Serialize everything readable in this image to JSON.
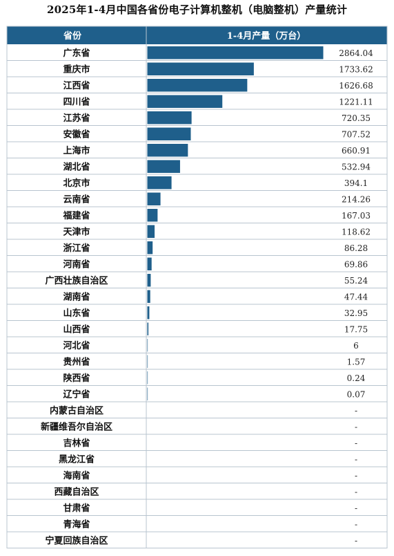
{
  "chart_data": {
    "type": "bar",
    "orientation": "horizontal",
    "title": "2025年1-4月中国各省份电子计算机整机（电脑整机）产量统计",
    "columns": [
      "省份",
      "1-4月产量（万台）"
    ],
    "categories": [
      "广东省",
      "重庆市",
      "江西省",
      "四川省",
      "江苏省",
      "安徽省",
      "上海市",
      "湖北省",
      "北京市",
      "云南省",
      "福建省",
      "天津市",
      "浙江省",
      "河南省",
      "广西壮族自治区",
      "湖南省",
      "山东省",
      "山西省",
      "河北省",
      "贵州省",
      "陕西省",
      "辽宁省",
      "内蒙古自治区",
      "新疆维吾尔自治区",
      "吉林省",
      "黑龙江省",
      "海南省",
      "西藏自治区",
      "甘肃省",
      "青海省",
      "宁夏回族自治区"
    ],
    "values": [
      2864.04,
      1733.62,
      1626.68,
      1221.11,
      720.35,
      707.52,
      660.91,
      532.94,
      394.1,
      214.26,
      167.03,
      118.62,
      86.28,
      69.86,
      55.24,
      47.44,
      32.95,
      17.75,
      6,
      1.57,
      0.24,
      0.07,
      null,
      null,
      null,
      null,
      null,
      null,
      null,
      null,
      null
    ],
    "value_labels": [
      "2864.04",
      "1733.62",
      "1626.68",
      "1221.11",
      "720.35",
      "707.52",
      "660.91",
      "532.94",
      "394.1",
      "214.26",
      "167.03",
      "118.62",
      "86.28",
      "69.86",
      "55.24",
      "47.44",
      "32.95",
      "17.75",
      "6",
      "1.57",
      "0.24",
      "0.07",
      "-",
      "-",
      "-",
      "-",
      "-",
      "-",
      "-",
      "-",
      "-"
    ],
    "colors": {
      "header_bg": "#1f5f8b",
      "header_text": "#ffffff",
      "bar": "#1f5f8b",
      "grid": "#b8c4cf"
    }
  }
}
